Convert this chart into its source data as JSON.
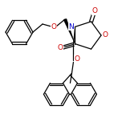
{
  "bg_color": "#ffffff",
  "bond_color": "#000000",
  "atom_colors": {
    "O": "#cc0000",
    "N": "#0000cc",
    "C": "#000000"
  },
  "figsize": [
    1.52,
    1.52
  ],
  "dpi": 100
}
